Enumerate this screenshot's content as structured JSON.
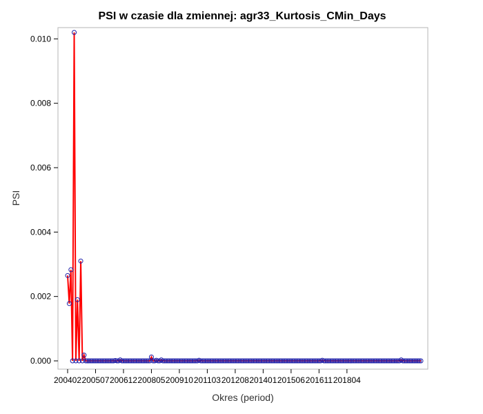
{
  "chart_data": {
    "type": "line",
    "title": "PSI w czasie dla zmiennej: agr33_Kurtosis_CMin_Days",
    "xlabel": "Okres (period)",
    "ylabel": "PSI",
    "ylim": [
      0,
      0.0102
    ],
    "yticks": [
      "0.000",
      "0.002",
      "0.004",
      "0.006",
      "0.008",
      "0.010"
    ],
    "ytick_values": [
      0,
      0.002,
      0.004,
      0.006,
      0.008,
      0.01
    ],
    "xticks": [
      "200402",
      "200507",
      "200612",
      "200805",
      "200910",
      "201103",
      "201208",
      "201401",
      "201506",
      "201611",
      "201804"
    ],
    "grid": false,
    "legend": "none",
    "series": [
      {
        "x_start": "200402",
        "values": [
          0.00265,
          0.00178,
          0.00283,
          0.0,
          0.0102,
          0.0,
          0.0019,
          0.0,
          0.0031,
          0.0,
          0.00018,
          0.0,
          0.0,
          0.0,
          0.0,
          0.0,
          0.0,
          0.0,
          0.0,
          0.0,
          0.0,
          0.0,
          0.0,
          0.0,
          0.0,
          0.0,
          0.0,
          0.0,
          0.0,
          1e-05,
          0.0,
          0.0,
          3e-05,
          0.0,
          0.0,
          0.0,
          0.0,
          0.0,
          0.0,
          0.0,
          0.0,
          0.0,
          0.0,
          0.0,
          0.0,
          0.0,
          0.0,
          0.0,
          0.0,
          0.0,
          0.0,
          0.00012,
          0.0,
          0.0,
          2e-05,
          0.0,
          0.0,
          3e-05,
          0.0,
          0.0,
          0.0,
          0.0,
          0.0,
          0.0,
          0.0,
          0.0,
          0.0,
          0.0,
          0.0,
          0.0,
          0.0,
          0.0,
          0.0,
          0.0,
          0.0,
          0.0,
          0.0,
          0.0,
          0.0,
          0.0,
          2e-05,
          0.0,
          0.0,
          0.0,
          0.0,
          0.0,
          0.0,
          0.0,
          0.0,
          0.0,
          0.0,
          0.0,
          0.0,
          0.0,
          0.0,
          0.0,
          0.0,
          0.0,
          0.0,
          0.0,
          0.0,
          0.0,
          0.0,
          0.0,
          0.0,
          0.0,
          0.0,
          0.0,
          0.0,
          0.0,
          0.0,
          0.0,
          0.0,
          0.0,
          0.0,
          0.0,
          0.0,
          0.0,
          0.0,
          0.0,
          0.0,
          0.0,
          0.0,
          0.0,
          0.0,
          0.0,
          0.0,
          0.0,
          0.0,
          0.0,
          0.0,
          0.0,
          0.0,
          0.0,
          0.0,
          0.0,
          0.0,
          0.0,
          0.0,
          0.0,
          0.0,
          0.0,
          0.0,
          0.0,
          0.0,
          0.0,
          0.0,
          0.0,
          0.0,
          0.0,
          0.0,
          0.0,
          0.0,
          0.0,
          0.0,
          2e-05,
          0.0,
          0.0,
          0.0,
          0.0,
          0.0,
          0.0,
          0.0,
          0.0,
          0.0,
          0.0,
          0.0,
          0.0,
          0.0,
          0.0,
          0.0,
          0.0,
          0.0,
          0.0,
          0.0,
          0.0,
          0.0,
          0.0,
          0.0,
          0.0,
          0.0,
          0.0,
          0.0,
          0.0,
          0.0,
          0.0,
          0.0,
          0.0,
          0.0,
          0.0,
          0.0,
          0.0,
          0.0,
          0.0,
          0.0,
          0.0,
          0.0,
          0.0,
          0.0,
          0.0,
          0.0,
          0.0,
          0.0,
          3e-05,
          0.0,
          0.0,
          0.0,
          0.0,
          0.0,
          0.0,
          0.0,
          0.0,
          0.0,
          0.0,
          0.0,
          0.0
        ]
      }
    ],
    "colors": {
      "line": "#ff0000",
      "marker": "#1a1aa6",
      "frame": "#b4b4b4"
    }
  }
}
